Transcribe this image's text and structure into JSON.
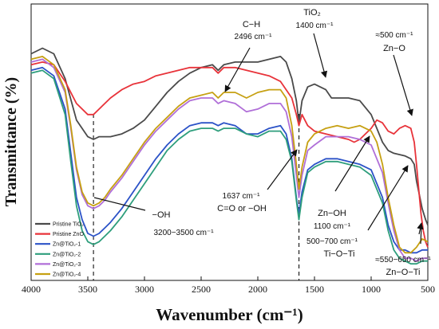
{
  "chart_data": {
    "type": "line",
    "title": "",
    "xlabel": "Wavenumber (cm⁻¹)",
    "ylabel": "Transmittance (%)",
    "xlim": [
      4000,
      500
    ],
    "x_reversed": true,
    "x_ticks": [
      "4000",
      "3500",
      "3000",
      "2500",
      "2000",
      "1500",
      "1000",
      "500"
    ],
    "y_ticks_shown": false,
    "legend_position": "bottom-left",
    "series": [
      {
        "name": "Pristine TiO₂",
        "color": "#4a4a4a",
        "points": [
          [
            4000,
            0.82
          ],
          [
            3900,
            0.84
          ],
          [
            3800,
            0.82
          ],
          [
            3700,
            0.73
          ],
          [
            3600,
            0.58
          ],
          [
            3500,
            0.52
          ],
          [
            3450,
            0.51
          ],
          [
            3400,
            0.52
          ],
          [
            3300,
            0.52
          ],
          [
            3200,
            0.53
          ],
          [
            3100,
            0.55
          ],
          [
            3000,
            0.58
          ],
          [
            2900,
            0.63
          ],
          [
            2800,
            0.68
          ],
          [
            2700,
            0.72
          ],
          [
            2600,
            0.75
          ],
          [
            2500,
            0.77
          ],
          [
            2400,
            0.78
          ],
          [
            2350,
            0.76
          ],
          [
            2300,
            0.78
          ],
          [
            2200,
            0.79
          ],
          [
            2100,
            0.79
          ],
          [
            2000,
            0.79
          ],
          [
            1900,
            0.8
          ],
          [
            1800,
            0.81
          ],
          [
            1750,
            0.79
          ],
          [
            1700,
            0.73
          ],
          [
            1660,
            0.65
          ],
          [
            1637,
            0.57
          ],
          [
            1610,
            0.65
          ],
          [
            1560,
            0.7
          ],
          [
            1500,
            0.71
          ],
          [
            1450,
            0.7
          ],
          [
            1400,
            0.69
          ],
          [
            1350,
            0.66
          ],
          [
            1300,
            0.66
          ],
          [
            1200,
            0.66
          ],
          [
            1100,
            0.65
          ],
          [
            1000,
            0.6
          ],
          [
            950,
            0.55
          ],
          [
            900,
            0.5
          ],
          [
            850,
            0.47
          ],
          [
            800,
            0.46
          ],
          [
            700,
            0.45
          ],
          [
            650,
            0.44
          ],
          [
            620,
            0.42
          ],
          [
            600,
            0.36
          ],
          [
            570,
            0.3
          ],
          [
            550,
            0.26
          ],
          [
            520,
            0.22
          ],
          [
            500,
            0.2
          ]
        ]
      },
      {
        "name": "Pristine ZnO",
        "color": "#e8333a",
        "points": [
          [
            4000,
            0.78
          ],
          [
            3900,
            0.79
          ],
          [
            3800,
            0.78
          ],
          [
            3700,
            0.72
          ],
          [
            3600,
            0.64
          ],
          [
            3500,
            0.6
          ],
          [
            3450,
            0.6
          ],
          [
            3400,
            0.62
          ],
          [
            3300,
            0.66
          ],
          [
            3200,
            0.69
          ],
          [
            3100,
            0.71
          ],
          [
            3000,
            0.72
          ],
          [
            2900,
            0.74
          ],
          [
            2800,
            0.75
          ],
          [
            2700,
            0.76
          ],
          [
            2600,
            0.77
          ],
          [
            2500,
            0.77
          ],
          [
            2400,
            0.77
          ],
          [
            2350,
            0.75
          ],
          [
            2300,
            0.77
          ],
          [
            2200,
            0.77
          ],
          [
            2100,
            0.76
          ],
          [
            2000,
            0.75
          ],
          [
            1900,
            0.74
          ],
          [
            1800,
            0.72
          ],
          [
            1700,
            0.66
          ],
          [
            1660,
            0.6
          ],
          [
            1637,
            0.56
          ],
          [
            1610,
            0.6
          ],
          [
            1560,
            0.56
          ],
          [
            1500,
            0.54
          ],
          [
            1400,
            0.53
          ],
          [
            1300,
            0.52
          ],
          [
            1200,
            0.51
          ],
          [
            1150,
            0.5
          ],
          [
            1100,
            0.51
          ],
          [
            1000,
            0.55
          ],
          [
            950,
            0.58
          ],
          [
            900,
            0.57
          ],
          [
            850,
            0.54
          ],
          [
            800,
            0.53
          ],
          [
            750,
            0.55
          ],
          [
            700,
            0.56
          ],
          [
            650,
            0.55
          ],
          [
            620,
            0.5
          ],
          [
            600,
            0.42
          ],
          [
            580,
            0.33
          ],
          [
            560,
            0.24
          ],
          [
            540,
            0.18
          ],
          [
            520,
            0.14
          ],
          [
            500,
            0.12
          ]
        ]
      },
      {
        "name": "Zn@TiO₂-1",
        "color": "#2b52c7",
        "points": [
          [
            4000,
            0.76
          ],
          [
            3900,
            0.77
          ],
          [
            3800,
            0.74
          ],
          [
            3700,
            0.62
          ],
          [
            3650,
            0.46
          ],
          [
            3600,
            0.3
          ],
          [
            3550,
            0.22
          ],
          [
            3500,
            0.17
          ],
          [
            3450,
            0.16
          ],
          [
            3400,
            0.17
          ],
          [
            3350,
            0.19
          ],
          [
            3300,
            0.21
          ],
          [
            3200,
            0.26
          ],
          [
            3100,
            0.32
          ],
          [
            3000,
            0.38
          ],
          [
            2900,
            0.44
          ],
          [
            2800,
            0.49
          ],
          [
            2700,
            0.53
          ],
          [
            2600,
            0.56
          ],
          [
            2500,
            0.57
          ],
          [
            2400,
            0.57
          ],
          [
            2350,
            0.56
          ],
          [
            2300,
            0.57
          ],
          [
            2200,
            0.56
          ],
          [
            2100,
            0.53
          ],
          [
            2000,
            0.53
          ],
          [
            1900,
            0.55
          ],
          [
            1800,
            0.56
          ],
          [
            1750,
            0.53
          ],
          [
            1700,
            0.44
          ],
          [
            1660,
            0.3
          ],
          [
            1637,
            0.24
          ],
          [
            1610,
            0.32
          ],
          [
            1560,
            0.4
          ],
          [
            1500,
            0.42
          ],
          [
            1400,
            0.44
          ],
          [
            1300,
            0.44
          ],
          [
            1200,
            0.43
          ],
          [
            1100,
            0.42
          ],
          [
            1000,
            0.4
          ],
          [
            900,
            0.3
          ],
          [
            850,
            0.2
          ],
          [
            800,
            0.14
          ],
          [
            750,
            0.11
          ],
          [
            700,
            0.11
          ],
          [
            650,
            0.1
          ],
          [
            600,
            0.1
          ],
          [
            550,
            0.11
          ],
          [
            500,
            0.11
          ]
        ]
      },
      {
        "name": "Zn@TiO₂-2",
        "color": "#2e9e7c",
        "points": [
          [
            4000,
            0.75
          ],
          [
            3900,
            0.76
          ],
          [
            3800,
            0.73
          ],
          [
            3700,
            0.6
          ],
          [
            3650,
            0.43
          ],
          [
            3600,
            0.27
          ],
          [
            3550,
            0.18
          ],
          [
            3500,
            0.14
          ],
          [
            3450,
            0.13
          ],
          [
            3400,
            0.14
          ],
          [
            3350,
            0.16
          ],
          [
            3300,
            0.18
          ],
          [
            3200,
            0.23
          ],
          [
            3100,
            0.29
          ],
          [
            3000,
            0.35
          ],
          [
            2900,
            0.41
          ],
          [
            2800,
            0.47
          ],
          [
            2700,
            0.51
          ],
          [
            2600,
            0.54
          ],
          [
            2500,
            0.55
          ],
          [
            2400,
            0.55
          ],
          [
            2350,
            0.54
          ],
          [
            2300,
            0.55
          ],
          [
            2200,
            0.55
          ],
          [
            2100,
            0.53
          ],
          [
            2000,
            0.52
          ],
          [
            1900,
            0.54
          ],
          [
            1800,
            0.54
          ],
          [
            1750,
            0.51
          ],
          [
            1700,
            0.43
          ],
          [
            1660,
            0.29
          ],
          [
            1637,
            0.22
          ],
          [
            1610,
            0.3
          ],
          [
            1560,
            0.39
          ],
          [
            1500,
            0.41
          ],
          [
            1400,
            0.43
          ],
          [
            1300,
            0.43
          ],
          [
            1200,
            0.42
          ],
          [
            1100,
            0.41
          ],
          [
            1000,
            0.38
          ],
          [
            900,
            0.28
          ],
          [
            850,
            0.18
          ],
          [
            800,
            0.11
          ],
          [
            750,
            0.08
          ],
          [
            700,
            0.07
          ],
          [
            650,
            0.06
          ],
          [
            600,
            0.06
          ],
          [
            550,
            0.07
          ],
          [
            500,
            0.07
          ]
        ]
      },
      {
        "name": "Zn@TiO₂-3",
        "color": "#b06fd8",
        "points": [
          [
            4000,
            0.79
          ],
          [
            3900,
            0.8
          ],
          [
            3800,
            0.77
          ],
          [
            3700,
            0.68
          ],
          [
            3650,
            0.55
          ],
          [
            3600,
            0.4
          ],
          [
            3550,
            0.31
          ],
          [
            3500,
            0.27
          ],
          [
            3450,
            0.26
          ],
          [
            3400,
            0.27
          ],
          [
            3350,
            0.29
          ],
          [
            3300,
            0.32
          ],
          [
            3200,
            0.37
          ],
          [
            3100,
            0.43
          ],
          [
            3000,
            0.49
          ],
          [
            2900,
            0.54
          ],
          [
            2800,
            0.58
          ],
          [
            2700,
            0.62
          ],
          [
            2600,
            0.65
          ],
          [
            2500,
            0.66
          ],
          [
            2400,
            0.66
          ],
          [
            2350,
            0.64
          ],
          [
            2300,
            0.65
          ],
          [
            2200,
            0.64
          ],
          [
            2100,
            0.61
          ],
          [
            2000,
            0.62
          ],
          [
            1900,
            0.64
          ],
          [
            1800,
            0.64
          ],
          [
            1750,
            0.61
          ],
          [
            1700,
            0.52
          ],
          [
            1660,
            0.38
          ],
          [
            1637,
            0.3
          ],
          [
            1610,
            0.38
          ],
          [
            1560,
            0.47
          ],
          [
            1500,
            0.49
          ],
          [
            1400,
            0.52
          ],
          [
            1300,
            0.52
          ],
          [
            1200,
            0.52
          ],
          [
            1100,
            0.51
          ],
          [
            1000,
            0.49
          ],
          [
            900,
            0.39
          ],
          [
            850,
            0.28
          ],
          [
            800,
            0.18
          ],
          [
            750,
            0.11
          ],
          [
            700,
            0.08
          ],
          [
            650,
            0.08
          ],
          [
            600,
            0.07
          ],
          [
            550,
            0.08
          ],
          [
            500,
            0.08
          ]
        ]
      },
      {
        "name": "Zn@TiO₂-4",
        "color": "#c6a012",
        "points": [
          [
            4000,
            0.8
          ],
          [
            3900,
            0.81
          ],
          [
            3800,
            0.78
          ],
          [
            3700,
            0.69
          ],
          [
            3650,
            0.56
          ],
          [
            3600,
            0.41
          ],
          [
            3550,
            0.32
          ],
          [
            3500,
            0.28
          ],
          [
            3450,
            0.27
          ],
          [
            3400,
            0.28
          ],
          [
            3350,
            0.3
          ],
          [
            3300,
            0.33
          ],
          [
            3200,
            0.38
          ],
          [
            3100,
            0.44
          ],
          [
            3000,
            0.5
          ],
          [
            2900,
            0.55
          ],
          [
            2800,
            0.59
          ],
          [
            2700,
            0.63
          ],
          [
            2600,
            0.66
          ],
          [
            2500,
            0.67
          ],
          [
            2400,
            0.68
          ],
          [
            2350,
            0.66
          ],
          [
            2300,
            0.68
          ],
          [
            2200,
            0.68
          ],
          [
            2100,
            0.66
          ],
          [
            2000,
            0.68
          ],
          [
            1900,
            0.69
          ],
          [
            1800,
            0.69
          ],
          [
            1750,
            0.66
          ],
          [
            1700,
            0.56
          ],
          [
            1660,
            0.42
          ],
          [
            1637,
            0.33
          ],
          [
            1610,
            0.41
          ],
          [
            1560,
            0.5
          ],
          [
            1500,
            0.53
          ],
          [
            1400,
            0.55
          ],
          [
            1300,
            0.56
          ],
          [
            1200,
            0.55
          ],
          [
            1100,
            0.56
          ],
          [
            1000,
            0.54
          ],
          [
            950,
            0.5
          ],
          [
            900,
            0.42
          ],
          [
            850,
            0.3
          ],
          [
            800,
            0.2
          ],
          [
            750,
            0.12
          ],
          [
            700,
            0.1
          ],
          [
            650,
            0.1
          ],
          [
            600,
            0.12
          ],
          [
            550,
            0.15
          ],
          [
            500,
            0.14
          ]
        ]
      }
    ],
    "reference_lines": [
      3450,
      1637
    ],
    "annotations": [
      {
        "lines": [
          "C−H",
          "2496 cm⁻¹"
        ]
      },
      {
        "lines": [
          "TiO₂",
          "1400 cm⁻¹"
        ]
      },
      {
        "lines": [
          "≈500 cm⁻¹",
          "Zn−O"
        ]
      },
      {
        "lines": [
          "−OH",
          "3200−3500 cm⁻¹"
        ]
      },
      {
        "lines": [
          "1637 cm⁻¹",
          "C=O or −OH"
        ]
      },
      {
        "lines": [
          "Zn−OH",
          "1100 cm⁻¹"
        ]
      },
      {
        "lines": [
          "500−700 cm⁻¹",
          "Ti−O−Ti"
        ]
      },
      {
        "lines": [
          "≈550−650 cm⁻¹",
          "Zn−O−Ti"
        ]
      }
    ]
  }
}
